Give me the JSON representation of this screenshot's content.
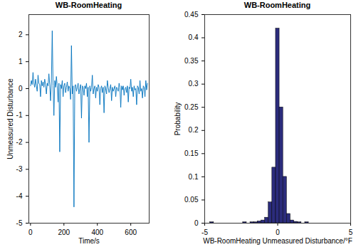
{
  "chart_data": [
    {
      "type": "line",
      "title": "WB-RoomHeating",
      "xlabel": "Time/s",
      "ylabel": "Unmeasured Disturbance",
      "xlim": [
        -10,
        710
      ],
      "xticks": [
        0,
        200,
        400,
        600
      ],
      "ylim": [
        -5,
        2.75
      ],
      "yticks": [
        -5,
        -4,
        -3,
        -2,
        -1,
        0,
        1,
        2
      ],
      "grid": false,
      "color": "#0072bd",
      "x": [
        0,
        5,
        10,
        15,
        20,
        25,
        30,
        35,
        40,
        45,
        50,
        55,
        60,
        65,
        70,
        75,
        80,
        85,
        90,
        95,
        100,
        105,
        110,
        115,
        120,
        125,
        130,
        135,
        140,
        145,
        150,
        155,
        160,
        165,
        170,
        175,
        180,
        185,
        190,
        195,
        200,
        205,
        210,
        215,
        220,
        225,
        230,
        235,
        240,
        245,
        250,
        255,
        260,
        265,
        270,
        275,
        280,
        285,
        290,
        295,
        300,
        305,
        310,
        315,
        320,
        325,
        330,
        335,
        340,
        345,
        350,
        355,
        360,
        365,
        370,
        375,
        380,
        385,
        390,
        395,
        400,
        405,
        410,
        415,
        420,
        425,
        430,
        435,
        440,
        445,
        450,
        455,
        460,
        465,
        470,
        475,
        480,
        485,
        490,
        495,
        500,
        505,
        510,
        515,
        520,
        525,
        530,
        535,
        540,
        545,
        550,
        555,
        560,
        565,
        570,
        575,
        580,
        585,
        590,
        595,
        600,
        605,
        610,
        615,
        620,
        625,
        630,
        635,
        640,
        645,
        650,
        655,
        660,
        665,
        670,
        675,
        680,
        685,
        690,
        695,
        700
      ],
      "values": [
        0.1,
        0.3,
        0.15,
        0.6,
        0.2,
        0.05,
        0.35,
        0.1,
        -0.1,
        0.5,
        0.2,
        0.15,
        -0.3,
        0.3,
        0.1,
        0.25,
        0.05,
        0.35,
        0.15,
        -0.2,
        0.2,
        0.1,
        0.55,
        0.15,
        -0.45,
        0.25,
        2.15,
        0.1,
        -1.0,
        0.3,
        0.05,
        0.45,
        0.1,
        -0.5,
        0.2,
        -2.35,
        0.15,
        0,
        0.3,
        -0.3,
        0.1,
        0.2,
        -0.15,
        0.05,
        0.25,
        -0.1,
        0.1,
        0,
        -0.4,
        1.6,
        -0.2,
        0.1,
        -4.4,
        0.1,
        0.15,
        -0.1,
        0.05,
        0.2,
        -0.2,
        0,
        0.15,
        -1.1,
        0.1,
        0.05,
        -0.25,
        0.1,
        0,
        0.2,
        -0.3,
        0.05,
        -2.0,
        0.1,
        -0.1,
        0.05,
        0.5,
        -0.2,
        0,
        0.1,
        -0.35,
        0.05,
        -0.1,
        0.15,
        0.05,
        -0.6,
        0,
        0.1,
        -0.15,
        0.05,
        -0.9,
        0.1,
        0,
        -0.2,
        0.3,
        0.05,
        -0.15,
        0,
        0.15,
        -0.45,
        0.05,
        -0.1,
        0,
        0.1,
        -0.3,
        0.05,
        0,
        -0.1,
        0.2,
        0.05,
        -0.7,
        0.1,
        -0.05,
        0.1,
        -0.25,
        0,
        0.05,
        -0.15,
        0.1,
        -0.5,
        0.05,
        0,
        0.35,
        -0.1,
        0.05,
        -0.3,
        0.1,
        -0.05,
        0,
        -0.6,
        0.1,
        0.05,
        -0.2,
        0.3,
        -0.1,
        0,
        -0.35,
        0.1,
        0.05,
        -0.3,
        0.3,
        -0.05,
        0.2
      ]
    },
    {
      "type": "histogram",
      "title": "WB-RoomHeating",
      "xlabel": "WB-RoomHeating Unmeasured Disturbance/°F",
      "ylabel": "Probability",
      "xlim": [
        -5,
        5
      ],
      "xticks": [
        -5,
        0,
        5
      ],
      "ylim": [
        0,
        0.45
      ],
      "yticks": [
        0,
        0.05,
        0.1,
        0.15,
        0.2,
        0.25,
        0.3,
        0.35,
        0.4,
        0.45
      ],
      "grid": false,
      "color": "#2b2c7c",
      "bins": [
        -4.625,
        -4.375,
        -4.125,
        -3.875,
        -3.625,
        -3.375,
        -3.125,
        -2.875,
        -2.625,
        -2.375,
        -2.125,
        -1.875,
        -1.625,
        -1.375,
        -1.125,
        -0.875,
        -0.625,
        -0.375,
        -0.125,
        0.125,
        0.375,
        0.625,
        0.875,
        1.125,
        1.375,
        1.625,
        1.875,
        2.125,
        2.375
      ],
      "values": [
        0.002,
        0,
        0,
        0,
        0,
        0,
        0,
        0,
        0,
        0.002,
        0,
        0.002,
        0.002,
        0.004,
        0.006,
        0.012,
        0.045,
        0.12,
        0.42,
        0.25,
        0.1,
        0.02,
        0.006,
        0.003,
        0.002,
        0,
        0.002,
        0
      ]
    }
  ]
}
